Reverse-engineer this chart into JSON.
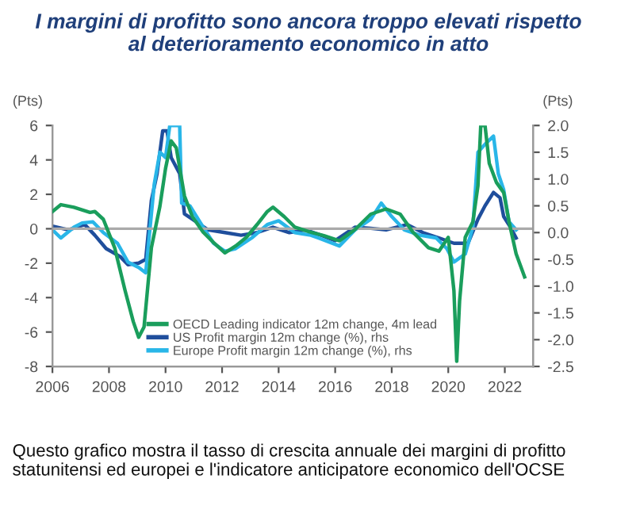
{
  "chart_data": {
    "type": "line",
    "title": "I margini di profitto sono ancora troppo elevati rispetto\nal deterioramento economico in atto",
    "ylabel": "(Pts)",
    "y2label": "(Pts)",
    "xlim": [
      2006,
      2023
    ],
    "xticks": [
      2006,
      2008,
      2010,
      2012,
      2014,
      2016,
      2018,
      2020,
      2022
    ],
    "ylim": [
      -8,
      6
    ],
    "yticks": [
      -8,
      -6,
      -4,
      -2,
      0,
      2,
      4,
      6
    ],
    "y2lim": [
      -2.5,
      2.0
    ],
    "y2ticks": [
      -2.5,
      {
        "value": -2.0,
        "label": "-2.0"
      },
      -1.5,
      {
        "value": -1.0,
        "label": "-1.0"
      },
      -0.5,
      {
        "value": 0.0,
        "label": "0.0"
      },
      0.5,
      {
        "value": 1.0,
        "label": "1.0"
      },
      1.5,
      {
        "value": 2.0,
        "label": "2.0"
      }
    ],
    "grid": false,
    "legend": "bottom",
    "marker": "none",
    "line_style": "solid",
    "ref_lines": [
      {
        "axis": "y",
        "value": 0,
        "color": "#aaaaaa"
      }
    ],
    "annotations": [
      "Questo grafico mostra il tasso di crescita annuale dei margini di profitto statunitensi ed europei e l'indicatore anticipatore economico dell'OCSE"
    ],
    "series": [
      {
        "name": "OECD Leading indicator 12m change, 4m lead",
        "color": "#1a9e5c",
        "x": [
          2006.0,
          2006.3,
          2006.76,
          2007.33,
          2007.5,
          2007.8,
          2008.2,
          2008.57,
          2008.86,
          2009.05,
          2009.24,
          2009.5,
          2009.8,
          2010.0,
          2010.2,
          2010.38,
          2010.67,
          2010.95,
          2011.33,
          2011.7,
          2012.1,
          2012.48,
          2012.86,
          2013.24,
          2013.6,
          2013.8,
          2014.2,
          2014.57,
          2015.14,
          2015.6,
          2016.15,
          2016.7,
          2017.26,
          2017.8,
          2018.3,
          2018.75,
          2019.3,
          2019.67,
          2020.0,
          2020.2,
          2020.3,
          2020.4,
          2020.6,
          2020.87,
          2021.05,
          2021.15,
          2021.3,
          2021.45,
          2021.7,
          2021.96,
          2022.15,
          2022.4,
          2022.7
        ],
        "values": [
          1.0,
          1.4,
          1.25,
          0.95,
          1.0,
          0.55,
          -1.1,
          -3.6,
          -5.4,
          -6.3,
          -5.7,
          -1.1,
          1.3,
          3.5,
          5.1,
          4.7,
          1.9,
          0.7,
          -0.2,
          -0.8,
          -1.4,
          -1.0,
          -0.5,
          0.25,
          1.0,
          1.25,
          0.7,
          0.1,
          -0.2,
          -0.4,
          -0.7,
          -0.05,
          0.85,
          1.15,
          0.85,
          -0.2,
          -1.1,
          -1.3,
          -0.5,
          -3.6,
          -7.7,
          -4.2,
          -0.5,
          0.4,
          2.5,
          6.0,
          6.0,
          3.8,
          2.7,
          2.1,
          0.4,
          -1.45,
          -2.8
        ]
      },
      {
        "name": "US Profit margin 12m change (%), rhs",
        "color": "#1f4e9c",
        "axis": "y2",
        "x": [
          2006.0,
          2006.57,
          2007.14,
          2007.5,
          2007.9,
          2008.4,
          2008.67,
          2009.05,
          2009.3,
          2009.5,
          2009.7,
          2009.9,
          2010.05,
          2010.2,
          2010.5,
          2010.67,
          2010.95,
          2011.5,
          2012.1,
          2012.67,
          2013.24,
          2013.8,
          2014.38,
          2014.95,
          2015.5,
          2016.0,
          2016.7,
          2017.26,
          2017.8,
          2018.55,
          2019.1,
          2019.67,
          2020.2,
          2020.7,
          2021.05,
          2021.3,
          2021.6,
          2021.83,
          2021.96,
          2022.2,
          2022.4
        ],
        "values": [
          0.12,
          0.05,
          0.15,
          -0.05,
          -0.3,
          -0.45,
          -0.6,
          -0.57,
          -0.5,
          0.6,
          1.1,
          1.9,
          1.9,
          1.4,
          1.1,
          0.35,
          0.25,
          0.05,
          0.0,
          -0.05,
          0.0,
          0.1,
          0.0,
          0.05,
          -0.05,
          -0.15,
          0.1,
          0.08,
          0.05,
          0.15,
          0.0,
          -0.1,
          -0.2,
          -0.2,
          0.25,
          0.5,
          0.75,
          0.65,
          0.3,
          0.1,
          -0.1
        ]
      },
      {
        "name": "Europe Profit margin 12m change (%), rhs",
        "color": "#29b6e8",
        "axis": "y2",
        "x": [
          2006.0,
          2006.3,
          2006.76,
          2007.05,
          2007.43,
          2007.8,
          2008.3,
          2008.67,
          2009.05,
          2009.3,
          2009.6,
          2009.8,
          2010.0,
          2010.15,
          2010.5,
          2010.57,
          2010.86,
          2011.33,
          2011.7,
          2012.1,
          2012.48,
          2013.05,
          2013.6,
          2014.0,
          2014.57,
          2015.14,
          2015.4,
          2016.15,
          2016.7,
          2017.26,
          2017.63,
          2018.0,
          2018.45,
          2019.0,
          2019.57,
          2019.95,
          2020.2,
          2020.6,
          2020.87,
          2021.05,
          2021.3,
          2021.6,
          2021.77,
          2021.96,
          2022.15,
          2022.4
        ],
        "values": [
          0.05,
          -0.1,
          0.1,
          0.18,
          0.2,
          0.0,
          -0.2,
          -0.55,
          -0.65,
          -0.75,
          0.9,
          1.5,
          1.4,
          2.0,
          2.0,
          0.55,
          0.5,
          0.1,
          -0.2,
          -0.35,
          -0.3,
          -0.1,
          0.15,
          0.22,
          0.0,
          -0.05,
          -0.1,
          -0.25,
          0.05,
          0.25,
          0.55,
          0.3,
          0.05,
          -0.05,
          -0.1,
          -0.3,
          -0.55,
          -0.4,
          0.1,
          1.5,
          1.65,
          1.8,
          1.1,
          0.8,
          0.2,
          0.05
        ]
      }
    ]
  }
}
